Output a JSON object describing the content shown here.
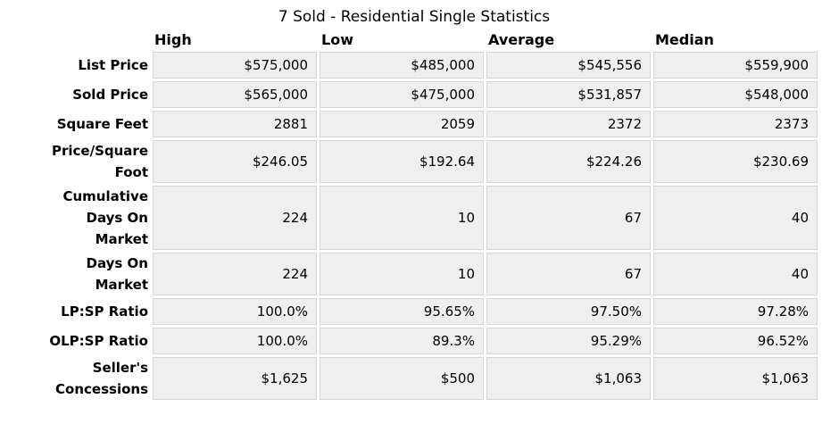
{
  "title": "7 Sold - Residential Single Statistics",
  "table": {
    "columns": [
      "High",
      "Low",
      "Average",
      "Median"
    ],
    "rows": [
      {
        "label": "List Price",
        "values": [
          "$575,000",
          "$485,000",
          "$545,556",
          "$559,900"
        ]
      },
      {
        "label": "Sold Price",
        "values": [
          "$565,000",
          "$475,000",
          "$531,857",
          "$548,000"
        ]
      },
      {
        "label": "Square Feet",
        "values": [
          "2881",
          "2059",
          "2372",
          "2373"
        ]
      },
      {
        "label": "Price/Square\nFoot",
        "values": [
          "$246.05",
          "$192.64",
          "$224.26",
          "$230.69"
        ]
      },
      {
        "label": "Cumulative\nDays On\nMarket",
        "values": [
          "224",
          "10",
          "67",
          "40"
        ]
      },
      {
        "label": "Days On\nMarket",
        "values": [
          "224",
          "10",
          "67",
          "40"
        ]
      },
      {
        "label": "LP:SP Ratio",
        "values": [
          "100.0%",
          "95.65%",
          "97.50%",
          "97.28%"
        ]
      },
      {
        "label": "OLP:SP Ratio",
        "values": [
          "100.0%",
          "89.3%",
          "95.29%",
          "96.52%"
        ]
      },
      {
        "label": "Seller's\nConcessions",
        "values": [
          "$1,625",
          "$500",
          "$1,063",
          "$1,063"
        ]
      }
    ]
  },
  "colors": {
    "cell_background": "#efefef",
    "cell_border": "#d6d6d6",
    "text": "#000000",
    "page_background": "#ffffff"
  }
}
